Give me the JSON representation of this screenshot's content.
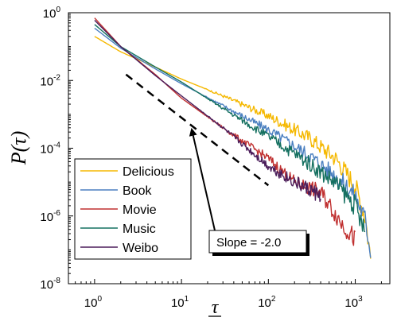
{
  "chart_data": {
    "type": "line",
    "title": "",
    "xlabel": "τ",
    "ylabel": "P(τ)",
    "xscale": "log",
    "yscale": "log",
    "xlim": [
      0.5,
      2500
    ],
    "ylim": [
      1e-08,
      1
    ],
    "grid": false,
    "legend_position": "bottom-left",
    "x_ticks": [
      {
        "base": "10",
        "exp": "0",
        "value": 1
      },
      {
        "base": "10",
        "exp": "1",
        "value": 10
      },
      {
        "base": "10",
        "exp": "2",
        "value": 100
      },
      {
        "base": "10",
        "exp": "3",
        "value": 1000
      }
    ],
    "y_ticks": [
      {
        "base": "10",
        "exp": "0",
        "value": 1
      },
      {
        "base": "10",
        "exp": "-2",
        "value": 0.01
      },
      {
        "base": "10",
        "exp": "-4",
        "value": 0.0001
      },
      {
        "base": "10",
        "exp": "-6",
        "value": 1e-06
      },
      {
        "base": "10",
        "exp": "-8",
        "value": 1e-08
      }
    ],
    "series": [
      {
        "name": "Delicious",
        "color": "#f5b800",
        "x": [
          1,
          2,
          5,
          10,
          30,
          100,
          300,
          600,
          1000,
          1300,
          1500
        ],
        "y": [
          0.2,
          0.07,
          0.025,
          0.011,
          0.0035,
          0.0009,
          0.0002,
          5e-05,
          8e-06,
          1e-06,
          6e-08
        ]
      },
      {
        "name": "Book",
        "color": "#4a7fc0",
        "x": [
          1,
          2,
          5,
          10,
          30,
          100,
          300,
          600,
          1000,
          1300,
          1500
        ],
        "y": [
          0.35,
          0.09,
          0.022,
          0.008,
          0.0018,
          0.00035,
          6e-05,
          1.5e-05,
          4e-06,
          8e-07,
          1e-07
        ]
      },
      {
        "name": "Movie",
        "color": "#c03030",
        "x": [
          1,
          2,
          5,
          10,
          30,
          100,
          200,
          400,
          700,
          1000
        ],
        "y": [
          0.7,
          0.1,
          0.015,
          0.003,
          0.0004,
          5e-05,
          1e-05,
          5e-06,
          6e-07,
          2e-07
        ]
      },
      {
        "name": "Music",
        "color": "#157060",
        "x": [
          1,
          2,
          5,
          10,
          30,
          100,
          300,
          600,
          1000,
          1300
        ],
        "y": [
          0.45,
          0.1,
          0.025,
          0.009,
          0.0015,
          0.00022,
          3.5e-05,
          9e-06,
          2e-06,
          3e-07
        ]
      },
      {
        "name": "Weibo",
        "color": "#4b1d5a",
        "x": [
          1,
          2,
          5,
          10,
          30,
          60,
          100,
          200,
          400
        ],
        "y": [
          0.6,
          0.1,
          0.014,
          0.0035,
          0.0004,
          9e-05,
          3e-05,
          1e-05,
          4e-06
        ]
      }
    ],
    "reference_line": {
      "x": [
        2.3,
        100
      ],
      "y": [
        0.015,
        8e-06
      ],
      "color": "#000000"
    },
    "annotation": {
      "text": "Slope = -2.0",
      "arrow_to": [
        13,
        0.0004
      ]
    }
  }
}
